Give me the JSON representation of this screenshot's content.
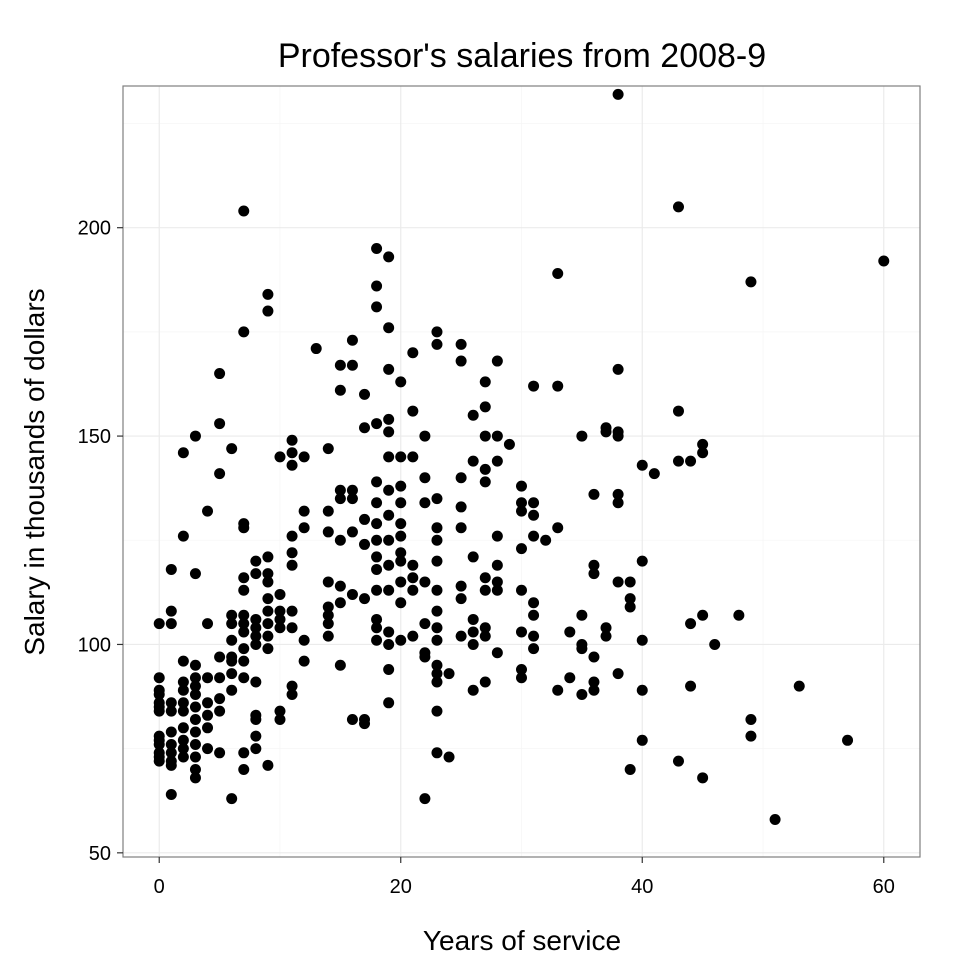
{
  "chart_data": {
    "type": "scatter",
    "title": "Professor's salaries from 2008-9",
    "xlabel": "Years of service",
    "ylabel": "Salary in thousands of dollars",
    "xlim": [
      -3,
      63
    ],
    "ylim": [
      49,
      234
    ],
    "x_ticks": [
      0,
      20,
      40,
      60
    ],
    "y_ticks": [
      50,
      100,
      150,
      200
    ],
    "grid": true,
    "legend": "none",
    "point_color": "#000000",
    "points": [
      [
        0,
        105
      ],
      [
        0,
        92
      ],
      [
        0,
        89
      ],
      [
        0,
        88
      ],
      [
        0,
        86
      ],
      [
        0,
        85
      ],
      [
        0,
        84
      ],
      [
        0,
        78
      ],
      [
        0,
        77
      ],
      [
        0,
        76
      ],
      [
        0,
        74
      ],
      [
        0,
        73
      ],
      [
        0,
        72
      ],
      [
        1,
        118
      ],
      [
        1,
        108
      ],
      [
        1,
        105
      ],
      [
        1,
        86
      ],
      [
        1,
        84
      ],
      [
        1,
        79
      ],
      [
        1,
        76
      ],
      [
        1,
        74
      ],
      [
        1,
        72
      ],
      [
        1,
        71
      ],
      [
        1,
        64
      ],
      [
        2,
        146
      ],
      [
        2,
        126
      ],
      [
        2,
        96
      ],
      [
        2,
        91
      ],
      [
        2,
        89
      ],
      [
        2,
        86
      ],
      [
        2,
        84
      ],
      [
        2,
        80
      ],
      [
        2,
        77
      ],
      [
        2,
        75
      ],
      [
        2,
        73
      ],
      [
        3,
        150
      ],
      [
        3,
        117
      ],
      [
        3,
        95
      ],
      [
        3,
        92
      ],
      [
        3,
        90
      ],
      [
        3,
        88
      ],
      [
        3,
        85
      ],
      [
        3,
        82
      ],
      [
        3,
        79
      ],
      [
        3,
        76
      ],
      [
        3,
        73
      ],
      [
        3,
        70
      ],
      [
        3,
        68
      ],
      [
        4,
        132
      ],
      [
        4,
        105
      ],
      [
        4,
        92
      ],
      [
        4,
        86
      ],
      [
        4,
        83
      ],
      [
        4,
        80
      ],
      [
        4,
        75
      ],
      [
        5,
        165
      ],
      [
        5,
        153
      ],
      [
        5,
        141
      ],
      [
        5,
        97
      ],
      [
        5,
        92
      ],
      [
        5,
        87
      ],
      [
        5,
        84
      ],
      [
        5,
        74
      ],
      [
        6,
        147
      ],
      [
        6,
        107
      ],
      [
        6,
        105
      ],
      [
        6,
        101
      ],
      [
        6,
        97
      ],
      [
        6,
        96
      ],
      [
        6,
        93
      ],
      [
        6,
        89
      ],
      [
        6,
        63
      ],
      [
        7,
        204
      ],
      [
        7,
        175
      ],
      [
        7,
        129
      ],
      [
        7,
        128
      ],
      [
        7,
        116
      ],
      [
        7,
        113
      ],
      [
        7,
        107
      ],
      [
        7,
        105
      ],
      [
        7,
        103
      ],
      [
        7,
        99
      ],
      [
        7,
        96
      ],
      [
        7,
        92
      ],
      [
        7,
        74
      ],
      [
        7,
        70
      ],
      [
        8,
        120
      ],
      [
        8,
        117
      ],
      [
        8,
        106
      ],
      [
        8,
        104
      ],
      [
        8,
        102
      ],
      [
        8,
        100
      ],
      [
        8,
        91
      ],
      [
        8,
        83
      ],
      [
        8,
        82
      ],
      [
        8,
        78
      ],
      [
        8,
        75
      ],
      [
        9,
        184
      ],
      [
        9,
        180
      ],
      [
        9,
        121
      ],
      [
        9,
        117
      ],
      [
        9,
        115
      ],
      [
        9,
        111
      ],
      [
        9,
        108
      ],
      [
        9,
        105
      ],
      [
        9,
        102
      ],
      [
        9,
        99
      ],
      [
        9,
        71
      ],
      [
        10,
        145
      ],
      [
        10,
        112
      ],
      [
        10,
        108
      ],
      [
        10,
        106
      ],
      [
        10,
        104
      ],
      [
        10,
        84
      ],
      [
        10,
        82
      ],
      [
        11,
        149
      ],
      [
        11,
        146
      ],
      [
        11,
        143
      ],
      [
        11,
        126
      ],
      [
        11,
        122
      ],
      [
        11,
        119
      ],
      [
        11,
        108
      ],
      [
        11,
        104
      ],
      [
        11,
        90
      ],
      [
        11,
        88
      ],
      [
        12,
        145
      ],
      [
        12,
        132
      ],
      [
        12,
        128
      ],
      [
        12,
        101
      ],
      [
        12,
        96
      ],
      [
        13,
        171
      ],
      [
        14,
        147
      ],
      [
        14,
        132
      ],
      [
        14,
        127
      ],
      [
        14,
        115
      ],
      [
        14,
        109
      ],
      [
        14,
        107
      ],
      [
        14,
        105
      ],
      [
        14,
        102
      ],
      [
        15,
        167
      ],
      [
        15,
        161
      ],
      [
        15,
        137
      ],
      [
        15,
        135
      ],
      [
        15,
        125
      ],
      [
        15,
        114
      ],
      [
        15,
        110
      ],
      [
        15,
        95
      ],
      [
        16,
        173
      ],
      [
        16,
        167
      ],
      [
        16,
        137
      ],
      [
        16,
        135
      ],
      [
        16,
        127
      ],
      [
        16,
        112
      ],
      [
        16,
        82
      ],
      [
        17,
        160
      ],
      [
        17,
        152
      ],
      [
        17,
        130
      ],
      [
        17,
        124
      ],
      [
        17,
        111
      ],
      [
        17,
        82
      ],
      [
        17,
        81
      ],
      [
        18,
        195
      ],
      [
        18,
        186
      ],
      [
        18,
        181
      ],
      [
        18,
        153
      ],
      [
        18,
        139
      ],
      [
        18,
        134
      ],
      [
        18,
        129
      ],
      [
        18,
        125
      ],
      [
        18,
        121
      ],
      [
        18,
        118
      ],
      [
        18,
        113
      ],
      [
        18,
        106
      ],
      [
        18,
        104
      ],
      [
        18,
        101
      ],
      [
        19,
        193
      ],
      [
        19,
        176
      ],
      [
        19,
        166
      ],
      [
        19,
        154
      ],
      [
        19,
        151
      ],
      [
        19,
        145
      ],
      [
        19,
        137
      ],
      [
        19,
        131
      ],
      [
        19,
        125
      ],
      [
        19,
        119
      ],
      [
        19,
        113
      ],
      [
        19,
        103
      ],
      [
        19,
        100
      ],
      [
        19,
        94
      ],
      [
        19,
        86
      ],
      [
        20,
        163
      ],
      [
        20,
        145
      ],
      [
        20,
        138
      ],
      [
        20,
        134
      ],
      [
        20,
        129
      ],
      [
        20,
        126
      ],
      [
        20,
        122
      ],
      [
        20,
        120
      ],
      [
        20,
        115
      ],
      [
        20,
        110
      ],
      [
        20,
        101
      ],
      [
        21,
        170
      ],
      [
        21,
        156
      ],
      [
        21,
        145
      ],
      [
        21,
        119
      ],
      [
        21,
        116
      ],
      [
        21,
        113
      ],
      [
        21,
        102
      ],
      [
        22,
        150
      ],
      [
        22,
        140
      ],
      [
        22,
        134
      ],
      [
        22,
        115
      ],
      [
        22,
        105
      ],
      [
        22,
        98
      ],
      [
        22,
        97
      ],
      [
        22,
        63
      ],
      [
        23,
        175
      ],
      [
        23,
        172
      ],
      [
        23,
        135
      ],
      [
        23,
        128
      ],
      [
        23,
        125
      ],
      [
        23,
        120
      ],
      [
        23,
        113
      ],
      [
        23,
        108
      ],
      [
        23,
        104
      ],
      [
        23,
        101
      ],
      [
        23,
        95
      ],
      [
        23,
        93
      ],
      [
        23,
        91
      ],
      [
        23,
        84
      ],
      [
        23,
        74
      ],
      [
        24,
        93
      ],
      [
        24,
        73
      ],
      [
        25,
        172
      ],
      [
        25,
        168
      ],
      [
        25,
        140
      ],
      [
        25,
        133
      ],
      [
        25,
        128
      ],
      [
        25,
        114
      ],
      [
        25,
        111
      ],
      [
        25,
        102
      ],
      [
        26,
        155
      ],
      [
        26,
        144
      ],
      [
        26,
        121
      ],
      [
        26,
        106
      ],
      [
        26,
        103
      ],
      [
        26,
        100
      ],
      [
        26,
        89
      ],
      [
        27,
        163
      ],
      [
        27,
        157
      ],
      [
        27,
        150
      ],
      [
        27,
        142
      ],
      [
        27,
        139
      ],
      [
        27,
        116
      ],
      [
        27,
        113
      ],
      [
        27,
        104
      ],
      [
        27,
        102
      ],
      [
        27,
        91
      ],
      [
        28,
        168
      ],
      [
        28,
        150
      ],
      [
        28,
        144
      ],
      [
        28,
        126
      ],
      [
        28,
        119
      ],
      [
        28,
        115
      ],
      [
        28,
        113
      ],
      [
        28,
        98
      ],
      [
        29,
        148
      ],
      [
        30,
        138
      ],
      [
        30,
        134
      ],
      [
        30,
        132
      ],
      [
        30,
        123
      ],
      [
        30,
        113
      ],
      [
        30,
        103
      ],
      [
        30,
        94
      ],
      [
        30,
        92
      ],
      [
        31,
        162
      ],
      [
        31,
        134
      ],
      [
        31,
        131
      ],
      [
        31,
        126
      ],
      [
        31,
        110
      ],
      [
        31,
        107
      ],
      [
        31,
        102
      ],
      [
        31,
        99
      ],
      [
        32,
        125
      ],
      [
        33,
        189
      ],
      [
        33,
        162
      ],
      [
        33,
        128
      ],
      [
        33,
        89
      ],
      [
        34,
        103
      ],
      [
        34,
        92
      ],
      [
        35,
        150
      ],
      [
        35,
        107
      ],
      [
        35,
        100
      ],
      [
        35,
        99
      ],
      [
        35,
        88
      ],
      [
        36,
        136
      ],
      [
        36,
        119
      ],
      [
        36,
        117
      ],
      [
        36,
        97
      ],
      [
        36,
        91
      ],
      [
        36,
        89
      ],
      [
        37,
        152
      ],
      [
        37,
        151
      ],
      [
        37,
        104
      ],
      [
        37,
        102
      ],
      [
        38,
        232
      ],
      [
        38,
        166
      ],
      [
        38,
        151
      ],
      [
        38,
        150
      ],
      [
        38,
        136
      ],
      [
        38,
        134
      ],
      [
        38,
        115
      ],
      [
        38,
        93
      ],
      [
        39,
        115
      ],
      [
        39,
        111
      ],
      [
        39,
        109
      ],
      [
        39,
        70
      ],
      [
        40,
        143
      ],
      [
        40,
        120
      ],
      [
        40,
        101
      ],
      [
        40,
        89
      ],
      [
        40,
        77
      ],
      [
        41,
        141
      ],
      [
        43,
        205
      ],
      [
        43,
        156
      ],
      [
        43,
        144
      ],
      [
        43,
        72
      ],
      [
        44,
        144
      ],
      [
        44,
        105
      ],
      [
        44,
        90
      ],
      [
        45,
        148
      ],
      [
        45,
        146
      ],
      [
        45,
        107
      ],
      [
        45,
        68
      ],
      [
        46,
        100
      ],
      [
        48,
        107
      ],
      [
        49,
        187
      ],
      [
        49,
        82
      ],
      [
        49,
        78
      ],
      [
        51,
        58
      ],
      [
        53,
        90
      ],
      [
        57,
        77
      ],
      [
        60,
        192
      ]
    ]
  }
}
